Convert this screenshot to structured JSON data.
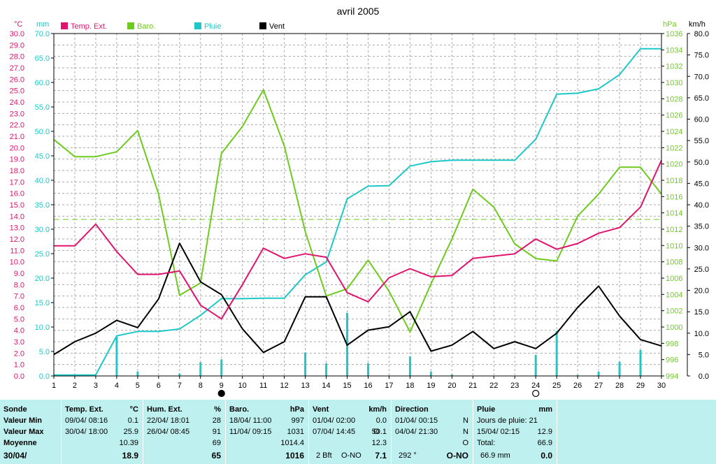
{
  "title": "avril 2005",
  "axes": {
    "temp_unit": "°C",
    "rain_unit": "mm",
    "baro_unit": "hPa",
    "wind_unit": "km/h",
    "temp_ticks": [
      "0.0",
      "1.0",
      "2.0",
      "3.0",
      "4.0",
      "5.0",
      "6.0",
      "7.0",
      "8.0",
      "9.0",
      "10.0",
      "11.0",
      "12.0",
      "13.0",
      "14.0",
      "15.0",
      "16.0",
      "17.0",
      "18.0",
      "19.0",
      "20.0",
      "21.0",
      "22.0",
      "23.0",
      "24.0",
      "25.0",
      "26.0",
      "27.0",
      "28.0",
      "29.0",
      "30.0"
    ],
    "rain_ticks": [
      "0.0",
      "5.0",
      "10.0",
      "15.0",
      "20.0",
      "25.0",
      "30.0",
      "35.0",
      "40.0",
      "45.0",
      "50.0",
      "55.0",
      "60.0",
      "65.0",
      "70.0"
    ],
    "baro_ticks": [
      "994",
      "996",
      "998",
      "1000",
      "1002",
      "1004",
      "1006",
      "1008",
      "1010",
      "1012",
      "1014",
      "1016",
      "1018",
      "1020",
      "1022",
      "1024",
      "1026",
      "1028",
      "1030",
      "1032",
      "1034",
      "1036"
    ],
    "wind_ticks": [
      "0.0",
      "5.0",
      "10.0",
      "15.0",
      "20.0",
      "25.0",
      "30.0",
      "35.0",
      "40.0",
      "45.0",
      "50.0",
      "55.0",
      "60.0",
      "65.0",
      "70.0",
      "75.0",
      "80.0"
    ],
    "x_ticks": [
      "1",
      "2",
      "3",
      "4",
      "5",
      "6",
      "7",
      "8",
      "9",
      "10",
      "11",
      "12",
      "13",
      "14",
      "15",
      "16",
      "17",
      "18",
      "19",
      "20",
      "21",
      "22",
      "23",
      "24",
      "25",
      "26",
      "27",
      "28",
      "29",
      "30"
    ]
  },
  "legend": {
    "temp": "Temp. Ext.",
    "baro": "Baro.",
    "rain": "Pluie",
    "wind": "Vent"
  },
  "colors": {
    "temp": "#e0146e",
    "baro": "#6ecb1e",
    "rain": "#1ec8c8",
    "wind": "#000000",
    "grid": "#aaaaaa",
    "panel": "#bff0f0"
  },
  "chart_data": {
    "type": "line",
    "title": "avril 2005",
    "x": [
      1,
      2,
      3,
      4,
      5,
      6,
      7,
      8,
      9,
      10,
      11,
      12,
      13,
      14,
      15,
      16,
      17,
      18,
      19,
      20,
      21,
      22,
      23,
      24,
      25,
      26,
      27,
      28,
      29,
      30
    ],
    "xlim": [
      1,
      30
    ],
    "moon_phases": [
      {
        "day": 9,
        "phase": "new"
      },
      {
        "day": 24,
        "phase": "full"
      }
    ],
    "series": [
      {
        "name": "Temp. Ext.",
        "axis": "left °C",
        "ylim": [
          0,
          30
        ],
        "values": [
          11.4,
          11.4,
          13.3,
          10.9,
          8.9,
          8.9,
          9.2,
          6.2,
          5.0,
          8.0,
          11.2,
          10.3,
          10.7,
          10.4,
          7.3,
          6.5,
          8.6,
          9.4,
          8.7,
          8.8,
          10.3,
          10.5,
          10.7,
          12.0,
          11.1,
          11.6,
          12.5,
          13.0,
          14.8,
          18.9
        ]
      },
      {
        "name": "Baro.",
        "axis": "right hPa",
        "ylim": [
          994,
          1036
        ],
        "values": [
          1023.0,
          1020.9,
          1020.9,
          1021.5,
          1024.1,
          1016.3,
          1003.9,
          1005.4,
          1021.3,
          1024.6,
          1029.1,
          1022.2,
          1011.7,
          1003.8,
          1004.7,
          1008.2,
          1004.4,
          999.4,
          1005.3,
          1010.8,
          1016.9,
          1014.7,
          1010.2,
          1008.4,
          1008.1,
          1013.6,
          1016.3,
          1019.6,
          1019.6,
          1016.3
        ]
      },
      {
        "name": "Pluie",
        "axis": "left mm cumulative",
        "ylim": [
          0,
          70
        ],
        "values": [
          0.2,
          0.2,
          0.2,
          8.2,
          9.1,
          9.1,
          9.6,
          12.4,
          15.8,
          15.8,
          15.9,
          15.9,
          20.7,
          23.3,
          36.2,
          38.8,
          38.9,
          42.9,
          43.8,
          44.1,
          44.1,
          44.1,
          44.1,
          48.4,
          57.6,
          57.8,
          58.7,
          61.6,
          66.9,
          66.9
        ]
      },
      {
        "name": "Pluie daily",
        "axis": "left mm bars",
        "ylim": [
          0,
          70
        ],
        "values": [
          0.0,
          0.0,
          0.0,
          8.0,
          0.9,
          0.0,
          0.5,
          2.8,
          3.4,
          0.0,
          0.0,
          0.0,
          4.8,
          2.6,
          12.9,
          2.6,
          0.1,
          4.0,
          0.9,
          0.3,
          0.0,
          0.0,
          0.0,
          4.3,
          9.2,
          0.2,
          0.9,
          2.9,
          5.3,
          0.0
        ]
      },
      {
        "name": "Vent",
        "axis": "right km/h",
        "ylim": [
          0,
          80
        ],
        "values": [
          5.0,
          8.0,
          10.0,
          13.0,
          11.3,
          18.0,
          31.0,
          22.0,
          19.0,
          11.0,
          5.5,
          8.0,
          18.5,
          18.5,
          7.2,
          10.7,
          11.5,
          15.0,
          5.8,
          7.2,
          10.4,
          6.4,
          8.0,
          6.4,
          10.0,
          16.0,
          21.0,
          14.0,
          8.5,
          7.0
        ]
      }
    ],
    "reference_lines": [
      {
        "axis": "right hPa",
        "value": 1013.2,
        "style": "dashed",
        "color": "baro"
      }
    ],
    "grid": true
  },
  "stats": {
    "sonde": {
      "header": "Sonde",
      "min": "Valeur Min",
      "max": "Valeur Max",
      "mean": "Moyenne",
      "date": "30/04/"
    },
    "temp": {
      "header": "Temp. Ext.",
      "unit": "°C",
      "min_date": "09/04/  08:16",
      "min_val": "0.1",
      "max_date": "30/04/  18:00",
      "max_val": "25.9",
      "mean": "10.39",
      "last": "18.9"
    },
    "hum": {
      "header": "Hum. Ext.",
      "unit": "%",
      "min_date": "22/04/  18:01",
      "min_val": "28",
      "max_date": "26/04/  08:45",
      "max_val": "91",
      "mean": "69",
      "last": "65"
    },
    "baro": {
      "header": "Baro.",
      "unit": "hPa",
      "min_date": "18/04/  11:00",
      "min_val": "997",
      "max_date": "11/04/  09:15",
      "max_val": "1031",
      "mean": "1014.4",
      "last": "1016"
    },
    "wind": {
      "header": "Vent",
      "unit": "km/h",
      "min_date": "01/04/  02:00",
      "min_val": "0.0",
      "max_date": "07/04/  14:45",
      "max_dir": "O",
      "max_val": "50.1",
      "mean": "12.3",
      "last_bft": "2 Bft",
      "last_dir": "O-NO",
      "last": "7.1"
    },
    "dir": {
      "header": "Direction",
      "min_date": "01/04/  00:15",
      "min_val": "N",
      "max_date": "04/04/  21:30",
      "max_val": "N",
      "mean": "O",
      "last_deg": "292 °",
      "last": "O-NO"
    },
    "rain": {
      "header": "Pluie",
      "unit": "mm",
      "days": "Jours de pluie: 21",
      "max_date": "15/04/  02:15",
      "max_val": "12.9",
      "total_label": "Total:",
      "total": "66.9",
      "last_total": "66.9 mm",
      "last": "0.0"
    }
  }
}
